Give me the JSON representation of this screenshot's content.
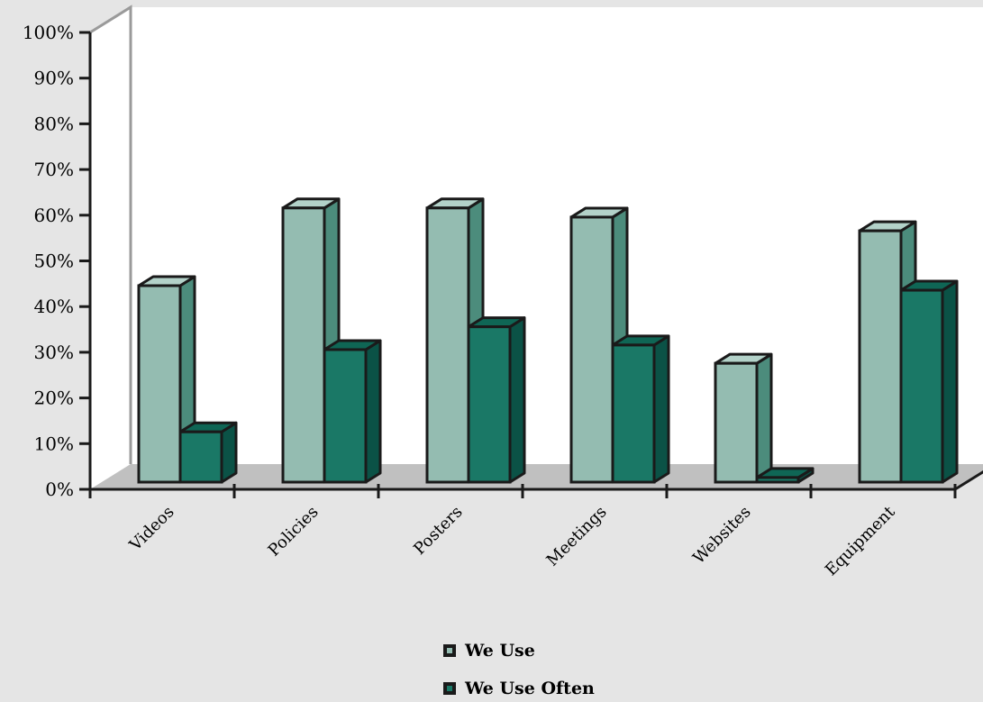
{
  "chart_data": {
    "type": "bar",
    "title": "",
    "xlabel": "",
    "ylabel": "",
    "categories": [
      "Videos",
      "Policies",
      "Posters",
      "Meetings",
      "Websites",
      "Equipment"
    ],
    "series": [
      {
        "name": "We Use",
        "values": [
          43,
          60,
          60,
          58,
          26,
          55
        ]
      },
      {
        "name": "We Use Often",
        "values": [
          11,
          29,
          34,
          30,
          1,
          42
        ]
      }
    ],
    "ylim": [
      0,
      100
    ],
    "yticks": [
      "0%",
      "10%",
      "20%",
      "30%",
      "40%",
      "50%",
      "60%",
      "70%",
      "80%",
      "90%",
      "100%"
    ],
    "grid": false,
    "legend_position": "bottom",
    "style": "3d-bar",
    "colors": {
      "we_use_front": "#94bcb1",
      "we_use_top": "#b3d2c9",
      "we_use_side": "#4c8c7c",
      "we_use_often_front": "#1a7866",
      "we_use_often_top": "#0f6655",
      "we_use_often_side": "#0b5246",
      "outline": "#1a1a1a",
      "floor": "#c0c0c0",
      "back_wall": "#ffffff",
      "background": "#e5e5e5"
    }
  }
}
